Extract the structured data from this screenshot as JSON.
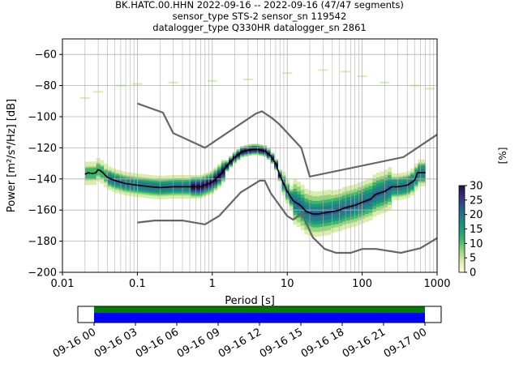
{
  "title_lines": [
    "BK.HATC.00.HHN   2022-09-16 -- 2022-09-16  (47/47 segments)",
    "sensor_type STS-2 sensor_sn 119542",
    "datalogger_type Q330HR datalogger_sn 2861"
  ],
  "chart_data": {
    "type": "heatmap",
    "xlabel": "Period [s]",
    "ylabel": "Power [m²/s⁴/Hz] [dB]",
    "x_scale": "log",
    "xlim": [
      0.01,
      1000
    ],
    "ylim": [
      -200,
      -50
    ],
    "x_ticks": [
      0.01,
      0.1,
      1,
      10,
      100,
      1000
    ],
    "x_tick_labels": [
      "0.01",
      "0.1",
      "1",
      "10",
      "100",
      "1000"
    ],
    "y_ticks": [
      -200,
      -180,
      -160,
      -140,
      -120,
      -100,
      -80,
      -60
    ],
    "y_tick_labels": [
      "−200",
      "−180",
      "−160",
      "−140",
      "−120",
      "−100",
      "−80",
      "−60"
    ],
    "grid": true,
    "colorbar": {
      "label": "[%]",
      "range": [
        0,
        30
      ],
      "ticks": [
        0,
        5,
        10,
        15,
        20,
        25,
        30
      ],
      "tick_labels": [
        "0",
        "5",
        "10",
        "15",
        "20",
        "25",
        "30"
      ],
      "colors": [
        "#ffffe0",
        "#d9eeac",
        "#9ad47c",
        "#3fb66a",
        "#1a9a78",
        "#237e8a",
        "#2b5a8c",
        "#33307a",
        "#2a0f4e"
      ]
    },
    "series": [
      {
        "role": "mean",
        "color": "#000000",
        "x": [
          0.02,
          0.022,
          0.025,
          0.028,
          0.03,
          0.033,
          0.04,
          0.05,
          0.07,
          0.1,
          0.15,
          0.2,
          0.3,
          0.5,
          0.7,
          0.9,
          1.0,
          1.3,
          1.6,
          2.0,
          2.5,
          3.0,
          3.5,
          4.0,
          5.0,
          6.0,
          7.0,
          8.0,
          10,
          12,
          15,
          18,
          22,
          26,
          30,
          40,
          50,
          60,
          80,
          100,
          130,
          150,
          200,
          250,
          300,
          400,
          500,
          550,
          700
        ],
        "y": [
          -137,
          -136,
          -136.5,
          -136,
          -134,
          -135,
          -139,
          -141,
          -143,
          -144,
          -145,
          -145.5,
          -145,
          -145,
          -145,
          -143,
          -142,
          -137,
          -131,
          -126,
          -122.5,
          -121.5,
          -121,
          -121,
          -122,
          -125,
          -130,
          -138,
          -148,
          -154,
          -157,
          -161,
          -162.5,
          -162.5,
          -162,
          -161,
          -160,
          -158.5,
          -157,
          -155,
          -153,
          -150,
          -148,
          -145,
          -145,
          -144,
          -141,
          -136,
          -136
        ]
      }
    ],
    "noise_models": {
      "color": "#666666",
      "high": {
        "x": [
          0.1,
          0.22,
          0.3,
          0.8,
          3.8,
          4.6,
          6.3,
          7.9,
          15.4,
          20,
          354.8,
          1000
        ],
        "y": [
          -91.5,
          -97.4,
          -110.5,
          -120,
          -98,
          -96.5,
          -101,
          -105,
          -120,
          -138.5,
          -126,
          -111.5
        ]
      },
      "low": {
        "x": [
          0.1,
          0.17,
          0.4,
          0.8,
          1.24,
          2.4,
          4.3,
          5.0,
          6.0,
          10,
          12,
          15.6,
          21.9,
          31.6,
          45,
          70,
          101,
          154,
          328,
          600,
          1000
        ],
        "y": [
          -168,
          -166.7,
          -166.7,
          -169.2,
          -163.7,
          -148.6,
          -141.1,
          -141.1,
          -149,
          -163.8,
          -166.2,
          -162.1,
          -177.5,
          -185,
          -187.5,
          -187.5,
          -185,
          -185,
          -187.5,
          -184.5,
          -178
        ]
      }
    }
  },
  "timeline": {
    "tick_labels": [
      "09-16 00",
      "09-16 03",
      "09-16 06",
      "09-16 09",
      "09-16 12",
      "09-16 15",
      "09-16 18",
      "09-16 21",
      "09-17 00"
    ],
    "coverage_color": "#0000ff",
    "data_color": "#008000"
  }
}
